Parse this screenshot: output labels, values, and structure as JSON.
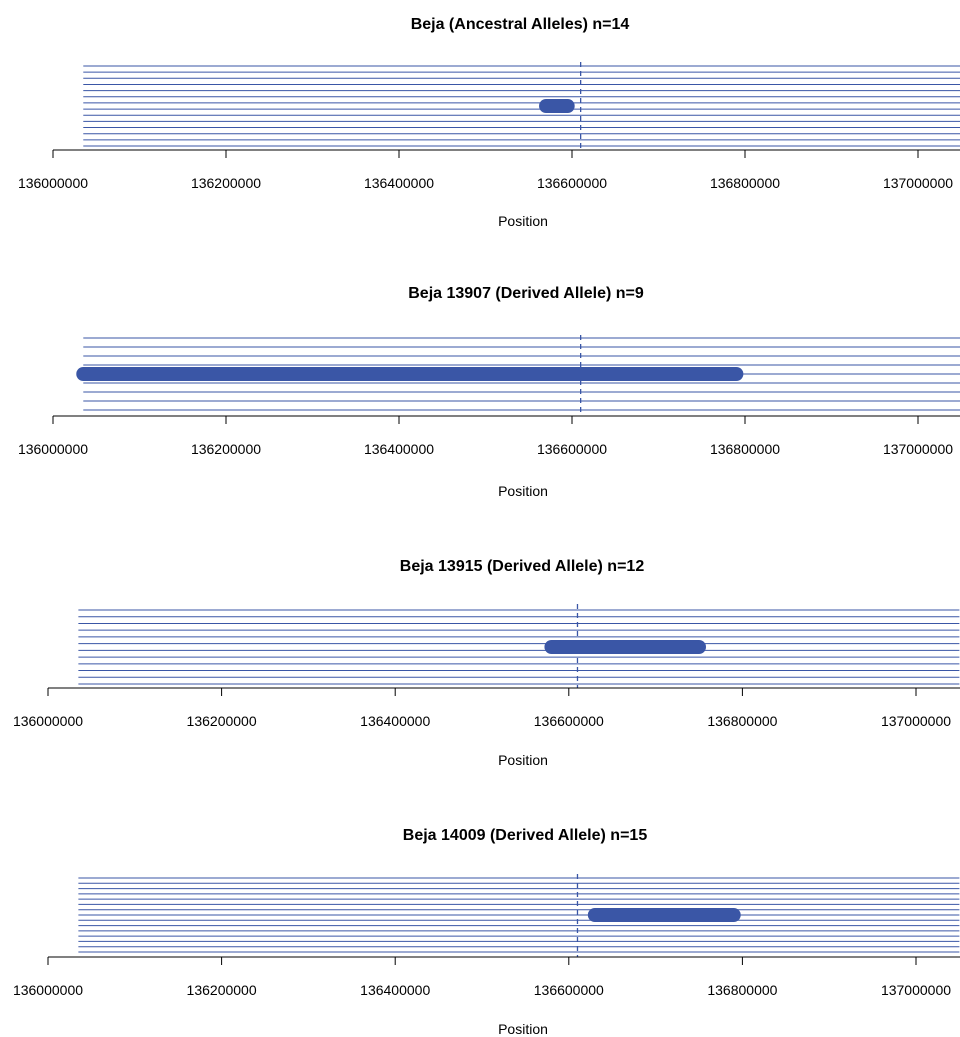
{
  "colors": {
    "haplotype": "#3a56a6",
    "axis": "#000000",
    "background": "#ffffff"
  },
  "chart_data": [
    {
      "type": "bifurcation",
      "title": "Beja (Ancestral Alleles) n=14",
      "xlabel": "Position",
      "xlim": [
        136000000,
        137050000
      ],
      "tick_labels": [
        "136000000",
        "136200000",
        "136400000",
        "136600000",
        "136800000",
        "137000000"
      ],
      "core_position": 136610000,
      "n": 14,
      "leftmost_extent": 136035000,
      "rightmost_extent": 137050000,
      "thickest_segment": [
        136570000,
        136595000
      ]
    },
    {
      "type": "bifurcation",
      "title": "Beja 13907 (Derived Allele) n=9",
      "xlabel": "Position",
      "xlim": [
        136000000,
        137050000
      ],
      "tick_labels": [
        "136000000",
        "136200000",
        "136400000",
        "136600000",
        "136800000",
        "137000000"
      ],
      "core_position": 136610000,
      "n": 9,
      "leftmost_extent": 136035000,
      "rightmost_extent": 137050000,
      "thickest_segment": [
        136035000,
        136790000
      ]
    },
    {
      "type": "bifurcation",
      "title": "Beja 13915 (Derived Allele) n=12",
      "xlabel": "Position",
      "xlim": [
        136000000,
        137050000
      ],
      "tick_labels": [
        "136000000",
        "136200000",
        "136400000",
        "136600000",
        "136800000",
        "137000000"
      ],
      "core_position": 136610000,
      "n": 12,
      "leftmost_extent": 136035000,
      "rightmost_extent": 137050000,
      "thickest_segment": [
        136580000,
        136750000
      ]
    },
    {
      "type": "bifurcation",
      "title": "Beja 14009 (Derived Allele) n=15",
      "xlabel": "Position",
      "xlim": [
        136000000,
        137050000
      ],
      "tick_labels": [
        "136000000",
        "136200000",
        "136400000",
        "136600000",
        "136800000",
        "137000000"
      ],
      "core_position": 136610000,
      "n": 15,
      "leftmost_extent": 136035000,
      "rightmost_extent": 137050000,
      "thickest_segment": [
        136630000,
        136790000
      ]
    }
  ]
}
